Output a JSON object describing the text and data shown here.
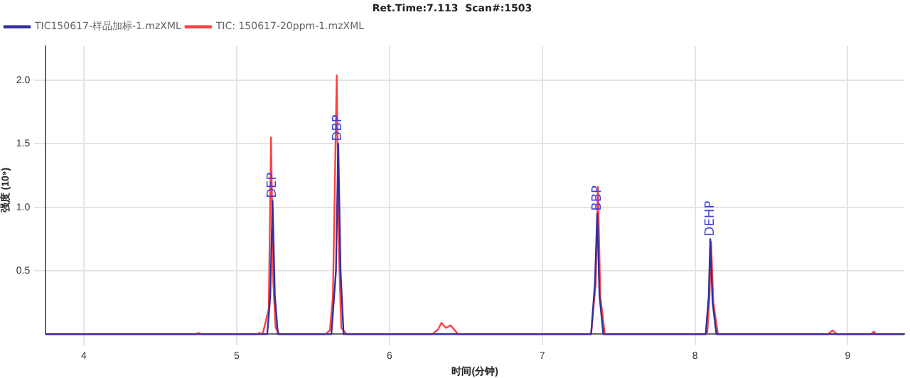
{
  "chart_data": {
    "type": "line",
    "title": "Ret.Time:7.113  Scan#:1503",
    "xlabel": "时间(分钟)",
    "ylabel": "强度 (10⁹)",
    "xlim": [
      3.75,
      9.37
    ],
    "xticks": [
      4,
      5,
      6,
      7,
      8,
      9
    ],
    "ylim": [
      0,
      2.27
    ],
    "yticks": [
      0.5,
      {
        "value": 1,
        "label": "1.0"
      },
      1.5,
      {
        "value": 2,
        "label": "2.0"
      }
    ],
    "grid": true,
    "legend": "top left",
    "marker": "none",
    "line_style": "solid",
    "series": [
      {
        "name": "TIC150617-样品加标-1.mzXML",
        "color": "#3030a0",
        "x": [
          3.75,
          5.2,
          5.22,
          5.235,
          5.25,
          5.27,
          5.62,
          5.65,
          5.665,
          5.68,
          5.7,
          7.32,
          7.345,
          7.36,
          7.375,
          7.4,
          8.07,
          8.09,
          8.1,
          8.115,
          8.14,
          9.37
        ],
        "values": [
          0,
          0,
          0.3,
          1.05,
          0.3,
          0,
          0,
          0.5,
          1.5,
          0.5,
          0,
          0,
          0.4,
          0.95,
          0.3,
          0,
          0,
          0.3,
          0.75,
          0.25,
          0,
          0
        ]
      },
      {
        "name": "TIC: 150617-20ppm-1.mzXML",
        "color": "#ff4040",
        "x": [
          3.75,
          4.73,
          4.75,
          4.77,
          5.13,
          5.15,
          5.17,
          5.21,
          5.225,
          5.24,
          5.255,
          5.28,
          5.58,
          5.61,
          5.63,
          5.655,
          5.67,
          5.685,
          5.72,
          6.28,
          6.32,
          6.34,
          6.37,
          6.4,
          6.45,
          7.32,
          7.35,
          7.365,
          7.38,
          7.41,
          8.08,
          8.095,
          8.105,
          8.12,
          8.15,
          8.87,
          8.9,
          8.93,
          9.15,
          9.17,
          9.19,
          9.37
        ],
        "values": [
          0,
          0,
          0.01,
          0,
          0,
          0.01,
          0,
          0.2,
          1.55,
          0.4,
          0.05,
          0,
          0,
          0.03,
          0.3,
          2.04,
          0.6,
          0.05,
          0,
          0,
          0.04,
          0.09,
          0.05,
          0.07,
          0,
          0,
          0.4,
          1.16,
          0.3,
          0,
          0,
          0.3,
          0.73,
          0.25,
          0,
          0,
          0.03,
          0,
          0,
          0.02,
          0,
          0
        ]
      }
    ],
    "annotations": [
      {
        "text": "DEP",
        "x": 5.235,
        "y": 1.05
      },
      {
        "text": "DBP",
        "x": 5.665,
        "y": 1.5
      },
      {
        "text": "BBP",
        "x": 7.36,
        "y": 0.95
      },
      {
        "text": "DEHP",
        "x": 8.1,
        "y": 0.75
      }
    ]
  }
}
